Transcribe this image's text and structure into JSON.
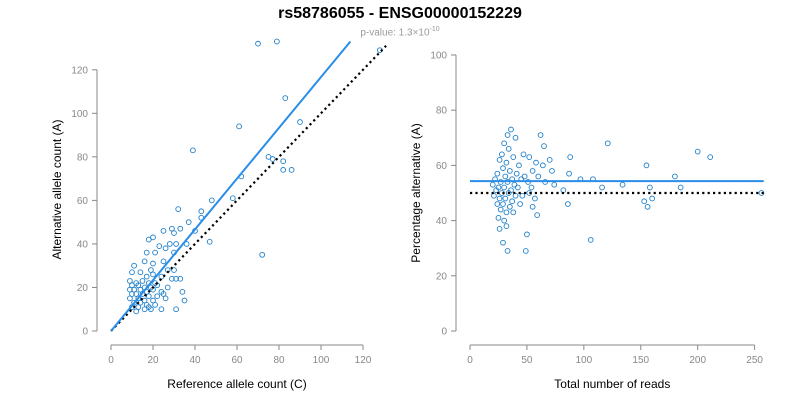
{
  "title": "rs58786055 - ENSG00000152229",
  "subtitle": {
    "prefix": "p-value: 1.3×10",
    "exponent": "-10"
  },
  "colors": {
    "points": "#1f7fc9",
    "fit": "#2a8de8",
    "reference": "#000000",
    "axis": "#888888"
  },
  "chart_data": [
    {
      "type": "scatter",
      "xlabel": "Reference allele count (C)",
      "ylabel": "Alternative allele count (A)",
      "xlim": [
        0,
        130
      ],
      "ylim": [
        0,
        130
      ],
      "xticks": [
        0,
        20,
        40,
        60,
        80,
        100,
        120
      ],
      "yticks": [
        0,
        20,
        40,
        60,
        80,
        100,
        120
      ],
      "fit_line": {
        "x": [
          0,
          114
        ],
        "y": [
          0,
          133
        ],
        "style": "solid"
      },
      "reference_line": {
        "x": [
          0,
          131
        ],
        "y": [
          0,
          131
        ],
        "style": "dotted"
      },
      "points": [
        [
          70,
          132
        ],
        [
          79,
          133
        ],
        [
          128,
          129
        ],
        [
          83,
          107
        ],
        [
          61,
          94
        ],
        [
          90,
          96
        ],
        [
          39,
          83
        ],
        [
          75,
          80
        ],
        [
          77,
          79
        ],
        [
          82,
          78
        ],
        [
          62,
          71
        ],
        [
          82,
          74
        ],
        [
          86,
          74
        ],
        [
          48,
          60
        ],
        [
          58,
          61
        ],
        [
          43,
          55
        ],
        [
          32,
          56
        ],
        [
          43,
          52
        ],
        [
          37,
          50
        ],
        [
          29,
          47
        ],
        [
          33,
          47
        ],
        [
          25,
          46
        ],
        [
          30,
          45
        ],
        [
          18,
          42
        ],
        [
          20,
          43
        ],
        [
          23,
          39
        ],
        [
          28,
          40
        ],
        [
          31,
          40
        ],
        [
          36,
          40
        ],
        [
          47,
          41
        ],
        [
          40,
          46
        ],
        [
          17,
          36
        ],
        [
          26,
          38
        ],
        [
          21,
          36
        ],
        [
          30,
          36
        ],
        [
          72,
          35
        ],
        [
          11,
          30
        ],
        [
          16,
          32
        ],
        [
          20,
          31
        ],
        [
          25,
          32
        ],
        [
          19,
          28
        ],
        [
          27,
          28
        ],
        [
          30,
          28
        ],
        [
          10,
          27
        ],
        [
          14,
          27
        ],
        [
          17,
          25
        ],
        [
          20,
          26
        ],
        [
          24,
          25
        ],
        [
          29,
          24
        ],
        [
          31,
          24
        ],
        [
          33,
          24
        ],
        [
          9,
          23
        ],
        [
          12,
          22
        ],
        [
          15,
          23
        ],
        [
          18,
          22
        ],
        [
          21,
          22
        ],
        [
          10,
          21
        ],
        [
          13,
          21
        ],
        [
          16,
          20
        ],
        [
          19,
          20
        ],
        [
          22,
          21
        ],
        [
          9,
          19
        ],
        [
          11,
          19
        ],
        [
          14,
          19
        ],
        [
          17,
          18
        ],
        [
          20,
          19
        ],
        [
          24,
          18
        ],
        [
          27,
          20
        ],
        [
          34,
          18
        ],
        [
          10,
          17
        ],
        [
          12,
          17
        ],
        [
          15,
          17
        ],
        [
          18,
          16
        ],
        [
          22,
          16
        ],
        [
          25,
          17
        ],
        [
          9,
          15
        ],
        [
          13,
          15
        ],
        [
          16,
          14
        ],
        [
          20,
          14
        ],
        [
          26,
          15
        ],
        [
          35,
          14
        ],
        [
          11,
          13
        ],
        [
          14,
          13
        ],
        [
          17,
          12
        ],
        [
          21,
          12
        ],
        [
          10,
          11
        ],
        [
          13,
          11
        ],
        [
          16,
          10
        ],
        [
          19,
          10
        ],
        [
          24,
          10
        ],
        [
          31,
          10
        ],
        [
          18,
          11
        ],
        [
          12,
          9
        ]
      ]
    },
    {
      "type": "scatter",
      "xlabel": "Total number of reads",
      "ylabel": "Percentage alternative (A)",
      "xlim": [
        0,
        260
      ],
      "ylim": [
        0,
        100
      ],
      "xticks": [
        0,
        50,
        100,
        150,
        200,
        250
      ],
      "yticks": [
        0,
        20,
        40,
        60,
        80,
        100
      ],
      "fit_line": {
        "x": [
          0,
          258
        ],
        "y": [
          54.3,
          54.3
        ],
        "style": "solid"
      },
      "reference_line": {
        "x": [
          0,
          258
        ],
        "y": [
          50,
          50
        ],
        "style": "dotted"
      },
      "points": [
        [
          36,
          73
        ],
        [
          33,
          71
        ],
        [
          40,
          70
        ],
        [
          62,
          71
        ],
        [
          30,
          68
        ],
        [
          34,
          66
        ],
        [
          65,
          67
        ],
        [
          121,
          68
        ],
        [
          200,
          65
        ],
        [
          28,
          64
        ],
        [
          38,
          63
        ],
        [
          47,
          64
        ],
        [
          52,
          63
        ],
        [
          70,
          62
        ],
        [
          26,
          62
        ],
        [
          32,
          61
        ],
        [
          43,
          60
        ],
        [
          58,
          61
        ],
        [
          88,
          63
        ],
        [
          211,
          63
        ],
        [
          155,
          60
        ],
        [
          29,
          59
        ],
        [
          35,
          58
        ],
        [
          41,
          57
        ],
        [
          55,
          58
        ],
        [
          64,
          60
        ],
        [
          72,
          58
        ],
        [
          24,
          57
        ],
        [
          31,
          56
        ],
        [
          37,
          55
        ],
        [
          45,
          55
        ],
        [
          48,
          56
        ],
        [
          60,
          56
        ],
        [
          87,
          57
        ],
        [
          180,
          56
        ],
        [
          22,
          55
        ],
        [
          27,
          54
        ],
        [
          33,
          54
        ],
        [
          39,
          53
        ],
        [
          51,
          54
        ],
        [
          66,
          54
        ],
        [
          97,
          55
        ],
        [
          108,
          55
        ],
        [
          20,
          53
        ],
        [
          25,
          52
        ],
        [
          30,
          52
        ],
        [
          36,
          51
        ],
        [
          42,
          52
        ],
        [
          54,
          52
        ],
        [
          74,
          53
        ],
        [
          116,
          52
        ],
        [
          134,
          53
        ],
        [
          185,
          52
        ],
        [
          23,
          51
        ],
        [
          28,
          50
        ],
        [
          34,
          50
        ],
        [
          40,
          49
        ],
        [
          52,
          50
        ],
        [
          82,
          51
        ],
        [
          158,
          52
        ],
        [
          256,
          50
        ],
        [
          21,
          49
        ],
        [
          26,
          48
        ],
        [
          31,
          48
        ],
        [
          37,
          47
        ],
        [
          46,
          49
        ],
        [
          57,
          48
        ],
        [
          86,
          46
        ],
        [
          153,
          47
        ],
        [
          160,
          48
        ],
        [
          24,
          46
        ],
        [
          29,
          46
        ],
        [
          35,
          45
        ],
        [
          44,
          46
        ],
        [
          55,
          45
        ],
        [
          156,
          45
        ],
        [
          27,
          44
        ],
        [
          32,
          43
        ],
        [
          38,
          43
        ],
        [
          59,
          42
        ],
        [
          25,
          41
        ],
        [
          30,
          40
        ],
        [
          26,
          37
        ],
        [
          32,
          38
        ],
        [
          50,
          35
        ],
        [
          106,
          33
        ],
        [
          29,
          32
        ],
        [
          33,
          29
        ],
        [
          49,
          29
        ]
      ]
    }
  ]
}
